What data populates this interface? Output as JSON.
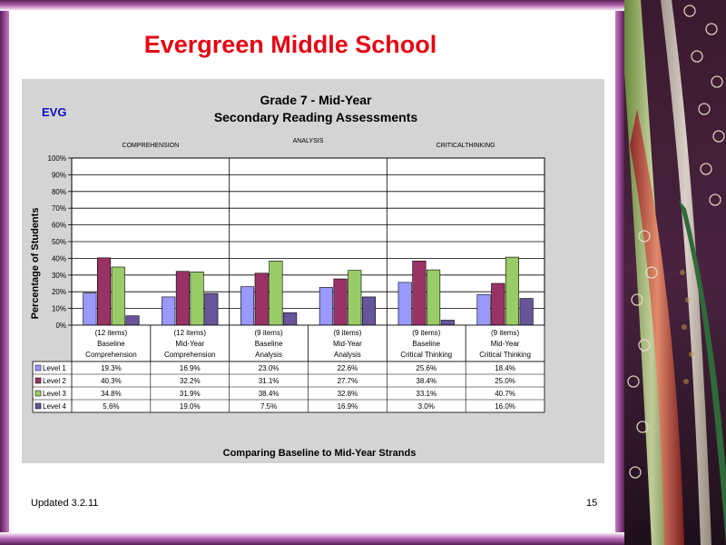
{
  "slide": {
    "title": "Evergreen Middle School",
    "badge": "EVG",
    "footer_left": "Updated  3.2.11",
    "footer_right": "15"
  },
  "colors": {
    "title": "#e30613",
    "badge": "#1010c8",
    "level1": "#9999ff",
    "level2": "#993366",
    "level3": "#99cc66",
    "level4": "#665599",
    "frame": "#5b1e58"
  },
  "chart_data": {
    "type": "bar",
    "title": "Grade 7 - Mid-Year",
    "subtitle": "Secondary Reading Assessments",
    "ylabel": "Percentage of Students",
    "xlabel": "Comparing Baseline to Mid-Year Strands",
    "ylim": [
      0,
      100
    ],
    "ytick_labels": [
      "0%",
      "10%",
      "20%",
      "30%",
      "40%",
      "50%",
      "60%",
      "70%",
      "80%",
      "90%",
      "100%"
    ],
    "group_labels": [
      "COMPREHENSION",
      "ANALYSIS",
      "CRITICALTHINKING"
    ],
    "categories": [
      {
        "items": "(12 items)",
        "line1": "Baseline",
        "line2": "Comprehension"
      },
      {
        "items": "(12 items)",
        "line1": "Mid-Year",
        "line2": "Comprehension"
      },
      {
        "items": "(9 items)",
        "line1": "Baseline",
        "line2": "Analysis"
      },
      {
        "items": "(9 items)",
        "line1": "Mid-Year",
        "line2": "Analysis"
      },
      {
        "items": "(9 items)",
        "line1": "Baseline",
        "line2": "Critical Thinking"
      },
      {
        "items": "(9 items)",
        "line1": "Mid-Year",
        "line2": "Critical Thinking"
      }
    ],
    "series": [
      {
        "name": "Level 1",
        "values": [
          19.3,
          16.9,
          23.0,
          22.6,
          25.6,
          18.4
        ],
        "labels": [
          "19.3%",
          "16.9%",
          "23.0%",
          "22.6%",
          "25.6%",
          "18.4%"
        ]
      },
      {
        "name": "Level 2",
        "values": [
          40.3,
          32.2,
          31.1,
          27.7,
          38.4,
          25.0
        ],
        "labels": [
          "40.3%",
          "32.2%",
          "31.1%",
          "27.7%",
          "38.4%",
          "25.0%"
        ]
      },
      {
        "name": "Level 3",
        "values": [
          34.8,
          31.9,
          38.4,
          32.8,
          33.1,
          40.7
        ],
        "labels": [
          "34.8%",
          "31.9%",
          "38.4%",
          "32.8%",
          "33.1%",
          "40.7%"
        ]
      },
      {
        "name": "Level 4",
        "values": [
          5.6,
          19.0,
          7.5,
          16.9,
          3.0,
          16.0
        ],
        "labels": [
          "5.6%",
          "19.0%",
          "7.5%",
          "16.9%",
          "3.0%",
          "16.0%"
        ]
      }
    ],
    "legend": "data table below chart",
    "grid": true
  }
}
